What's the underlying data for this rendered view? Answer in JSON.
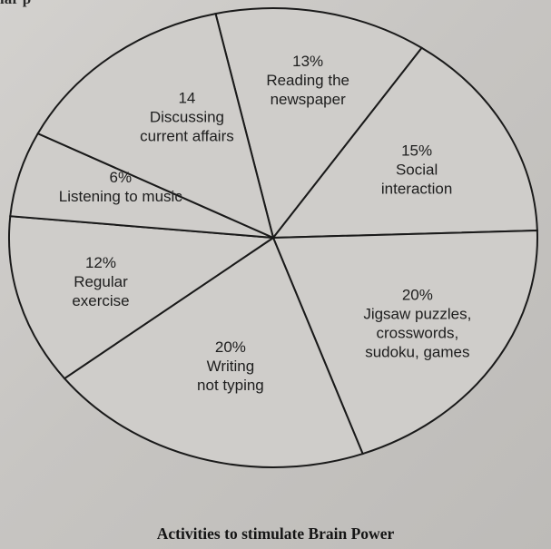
{
  "header_fragment": "lar p",
  "chart_data": {
    "type": "pie",
    "title": "Activities to stimulate Brain Power",
    "slices": [
      {
        "value_label": "13%",
        "value": 13,
        "lines": [
          "Reading the",
          "newspaper"
        ]
      },
      {
        "value_label": "15%",
        "value": 15,
        "lines": [
          "Social",
          "interaction"
        ]
      },
      {
        "value_label": "20%",
        "value": 20,
        "lines": [
          "Jigsaw puzzles,",
          "crosswords,",
          "sudoku, games"
        ]
      },
      {
        "value_label": "20%",
        "value": 20,
        "lines": [
          "Writing",
          "not typing"
        ]
      },
      {
        "value_label": "12%",
        "value": 12,
        "lines": [
          "Regular",
          "exercise"
        ]
      },
      {
        "value_label": "6%",
        "value": 6,
        "lines": [
          "Listening to music"
        ]
      },
      {
        "value_label": "14",
        "value": 14,
        "lines": [
          "Discussing",
          "current affairs"
        ]
      }
    ],
    "colors": {
      "fill": "#cfcdca",
      "stroke": "#1a1a1a",
      "text": "#1e1e1e"
    }
  }
}
